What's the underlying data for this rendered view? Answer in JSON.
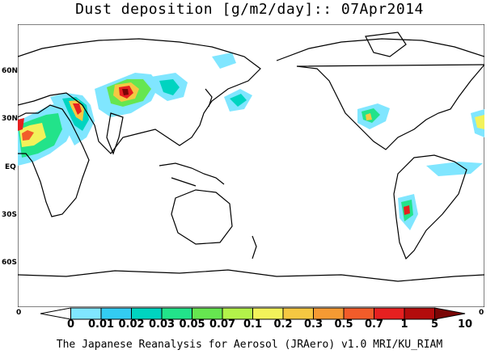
{
  "title": "Dust deposition [g/m2/day]:: 07Apr2014",
  "lat_labels": [
    "60N",
    "30N",
    "EQ",
    "30S",
    "60S"
  ],
  "colorbar": {
    "ticks": [
      "0",
      "0.01",
      "0.02",
      "0.03",
      "0.05",
      "0.07",
      "0.1",
      "0.2",
      "0.3",
      "0.5",
      "0.7",
      "1",
      "5",
      "10"
    ],
    "colors": [
      "#ffffff",
      "#80e6ff",
      "#33ccf2",
      "#00d4c0",
      "#22e38a",
      "#66e650",
      "#b3f24a",
      "#f2f25a",
      "#f5c842",
      "#f59a33",
      "#f25c2a",
      "#e62020",
      "#b30c0c",
      "#7a0606"
    ],
    "edge_left": "0",
    "edge_right": "0"
  },
  "footer": "The Japanese Reanalysis for Aerosol (JRAero) v1.0 MRI/KU_RIAM"
}
